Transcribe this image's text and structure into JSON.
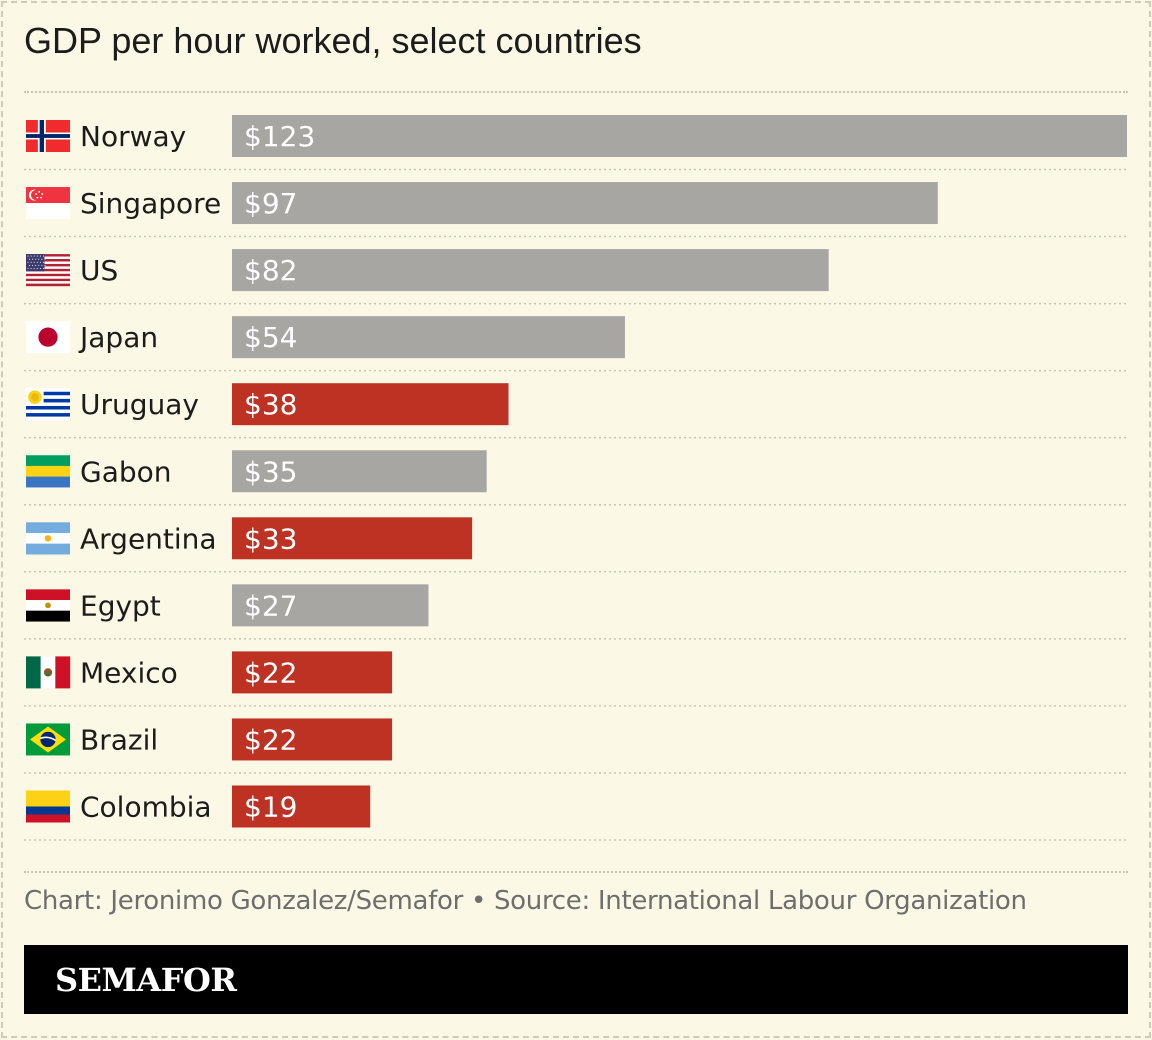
{
  "title": "GDP per hour worked, select countries",
  "credit": "Chart: Jeronimo Gonzalez/Semafor • Source: International Labour Organization",
  "brand": "SEMAFOR",
  "colors": {
    "background": "#fbf8e5",
    "default_bar": "#a7a6a2",
    "highlight_bar": "#be3223",
    "text": "#1c1c1c",
    "credit_text": "#6e6e6e"
  },
  "chart_data": {
    "type": "bar",
    "orientation": "horizontal",
    "title": "GDP per hour worked, select countries",
    "xlabel": "",
    "ylabel": "",
    "value_prefix": "$",
    "xlim": [
      0,
      123
    ],
    "grid": false,
    "categories": [
      "Norway",
      "Singapore",
      "US",
      "Japan",
      "Uruguay",
      "Gabon",
      "Argentina",
      "Egypt",
      "Mexico",
      "Brazil",
      "Colombia"
    ],
    "values": [
      123,
      97,
      82,
      54,
      38,
      35,
      33,
      27,
      22,
      22,
      19
    ],
    "labels": [
      "$123",
      "$97",
      "$82",
      "$54",
      "$38",
      "$35",
      "$33",
      "$27",
      "$22",
      "$22",
      "$19"
    ],
    "highlighted": [
      false,
      false,
      false,
      false,
      true,
      false,
      true,
      false,
      true,
      true,
      true
    ],
    "flag_icons": [
      "norway-flag-icon",
      "singapore-flag-icon",
      "us-flag-icon",
      "japan-flag-icon",
      "uruguay-flag-icon",
      "gabon-flag-icon",
      "argentina-flag-icon",
      "egypt-flag-icon",
      "mexico-flag-icon",
      "brazil-flag-icon",
      "colombia-flag-icon"
    ]
  }
}
